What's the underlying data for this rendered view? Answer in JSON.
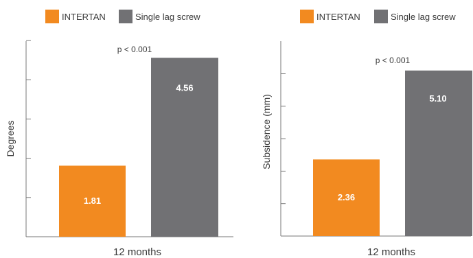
{
  "chart_data": [
    {
      "type": "bar",
      "categories": [
        "12 months"
      ],
      "series": [
        {
          "name": "INTERTAN",
          "values": [
            1.81
          ],
          "color": "#f28a20",
          "labels": [
            "1.81"
          ]
        },
        {
          "name": "Single lag screw",
          "values": [
            4.56
          ],
          "color": "#717174",
          "labels": [
            "4.56"
          ]
        }
      ],
      "ylabel": "Degrees",
      "ylim": [
        0,
        5.5
      ],
      "ytick_step": 1,
      "annotation": "p < 0.001",
      "legend": "top-left"
    },
    {
      "type": "bar",
      "categories": [
        "12 months"
      ],
      "series": [
        {
          "name": "INTERTAN",
          "values": [
            2.36
          ],
          "color": "#f28a20",
          "labels": [
            "2.36"
          ]
        },
        {
          "name": "Single lag screw",
          "values": [
            5.1
          ],
          "color": "#717174",
          "labels": [
            "5.10"
          ]
        }
      ],
      "ylabel": "Subsidence (mm)",
      "ylim": [
        0,
        6
      ],
      "ytick_step": 1,
      "annotation": "p < 0.001",
      "legend": "top-left"
    }
  ]
}
